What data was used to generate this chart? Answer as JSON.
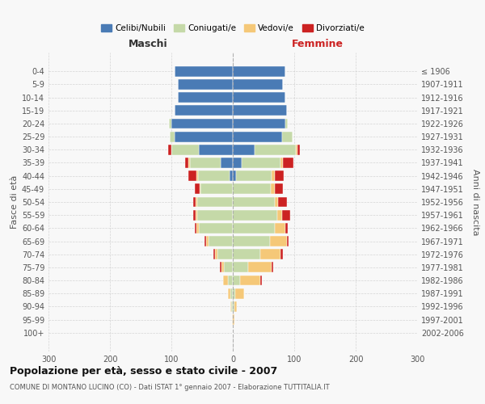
{
  "age_groups": [
    "0-4",
    "5-9",
    "10-14",
    "15-19",
    "20-24",
    "25-29",
    "30-34",
    "35-39",
    "40-44",
    "45-49",
    "50-54",
    "55-59",
    "60-64",
    "65-69",
    "70-74",
    "75-79",
    "80-84",
    "85-89",
    "90-94",
    "95-99",
    "100+"
  ],
  "birth_years": [
    "2002-2006",
    "1997-2001",
    "1992-1996",
    "1987-1991",
    "1982-1986",
    "1977-1981",
    "1972-1976",
    "1967-1971",
    "1962-1966",
    "1957-1961",
    "1952-1956",
    "1947-1951",
    "1942-1946",
    "1937-1941",
    "1932-1936",
    "1927-1931",
    "1922-1926",
    "1917-1921",
    "1912-1916",
    "1907-1911",
    "≤ 1906"
  ],
  "males": {
    "celibi": [
      95,
      90,
      90,
      95,
      100,
      95,
      55,
      20,
      5,
      0,
      0,
      0,
      0,
      0,
      0,
      0,
      0,
      0,
      0,
      0,
      0
    ],
    "coniugati": [
      0,
      0,
      0,
      0,
      4,
      8,
      45,
      50,
      52,
      52,
      58,
      58,
      55,
      40,
      25,
      15,
      8,
      4,
      2,
      0,
      0
    ],
    "vedovi": [
      0,
      0,
      0,
      0,
      0,
      0,
      0,
      2,
      2,
      2,
      2,
      2,
      4,
      4,
      4,
      4,
      8,
      4,
      2,
      1,
      0
    ],
    "divorziati": [
      0,
      0,
      0,
      0,
      0,
      0,
      5,
      5,
      14,
      8,
      5,
      5,
      3,
      2,
      2,
      2,
      0,
      0,
      0,
      0,
      0
    ]
  },
  "females": {
    "nubili": [
      85,
      82,
      85,
      88,
      85,
      80,
      35,
      15,
      5,
      0,
      0,
      0,
      0,
      0,
      0,
      0,
      0,
      0,
      0,
      0,
      0
    ],
    "coniugate": [
      0,
      0,
      0,
      0,
      4,
      18,
      68,
      62,
      58,
      62,
      68,
      72,
      68,
      60,
      45,
      25,
      12,
      4,
      2,
      0,
      0
    ],
    "vedove": [
      0,
      0,
      0,
      0,
      0,
      0,
      2,
      4,
      6,
      6,
      6,
      8,
      18,
      28,
      33,
      38,
      33,
      14,
      5,
      2,
      0
    ],
    "divorziate": [
      0,
      0,
      0,
      0,
      0,
      0,
      4,
      18,
      14,
      14,
      14,
      14,
      4,
      3,
      3,
      3,
      2,
      0,
      0,
      0,
      0
    ]
  },
  "colors": {
    "celibi": "#4a7bb5",
    "coniugati": "#c5d9a8",
    "vedovi": "#f5c878",
    "divorziati": "#cc2222"
  },
  "xlim": 300,
  "title": "Popolazione per età, sesso e stato civile - 2007",
  "subtitle": "COMUNE DI MONTANO LUCINO (CO) - Dati ISTAT 1° gennaio 2007 - Elaborazione TUTTITALIA.IT",
  "ylabel_left": "Fasce di età",
  "ylabel_right": "Anni di nascita",
  "xlabel_left": "Maschi",
  "xlabel_right": "Femmine",
  "legend_labels": [
    "Celibi/Nubili",
    "Coniugati/e",
    "Vedovi/e",
    "Divorziati/e"
  ],
  "background_color": "#f8f8f8",
  "grid_color": "#cccccc"
}
